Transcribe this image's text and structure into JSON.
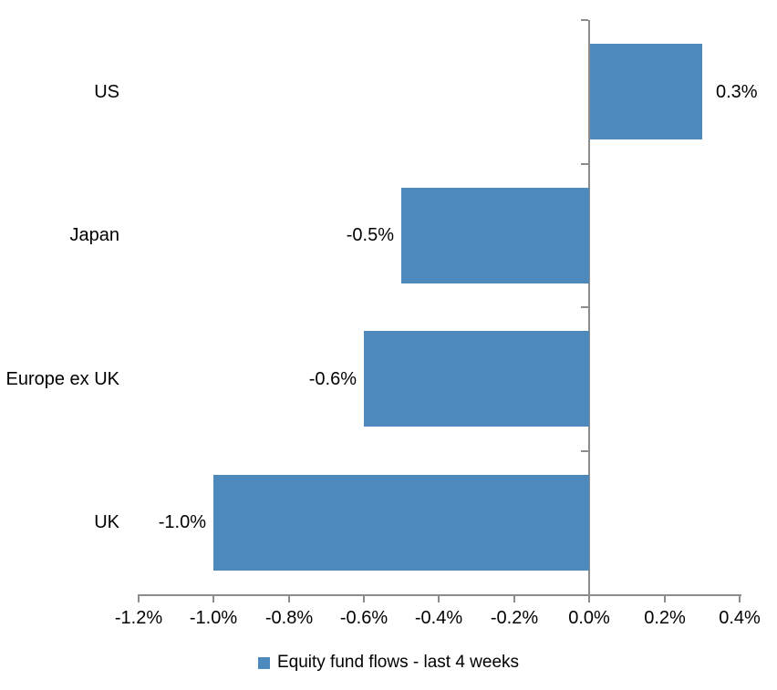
{
  "chart_data": {
    "type": "bar",
    "orientation": "horizontal",
    "title": "",
    "categories": [
      "US",
      "Japan",
      "Europe ex UK",
      "UK"
    ],
    "values": [
      0.3,
      -0.5,
      -0.6,
      -1.0
    ],
    "data_labels": [
      "0.3%",
      "-0.5%",
      "-0.6%",
      "-1.0%"
    ],
    "x_tick_values": [
      -1.2,
      -1.0,
      -0.8,
      -0.6,
      -0.4,
      -0.2,
      0.0,
      0.2,
      0.4
    ],
    "x_tick_labels": [
      "-1.2%",
      "-1.0%",
      "-0.8%",
      "-0.6%",
      "-0.4%",
      "-0.2%",
      "0.0%",
      "0.2%",
      "0.4%"
    ],
    "xlim": [
      -1.2,
      0.4
    ],
    "xlabel": "",
    "ylabel": "",
    "grid": false,
    "legend": "Equity fund flows - last 4 weeks",
    "legend_position": "bottom-center",
    "bar_color": "#4E89BE",
    "axis_color": "#8C8C8C",
    "text_color": "#000000",
    "background_color": "#FFFFFF"
  }
}
